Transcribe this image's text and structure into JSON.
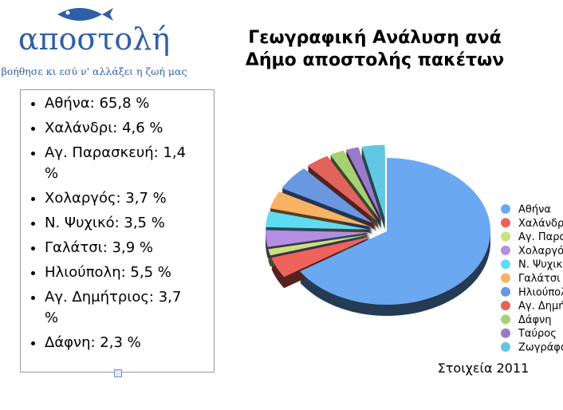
{
  "logo": {
    "name": "αποστολή",
    "slogan": "βοήθησε κι εσύ ν' αλλάξει η ζωή μας"
  },
  "text_box": {
    "items": [
      "Αθήνα: 65,8 %",
      "Χαλάνδρι: 4,6 %",
      "Αγ. Παρασκευή: 1,4 %",
      "Χολαργός: 3,7 %",
      "Ν. Ψυχικό: 3,5 %",
      "Γαλάτσι: 3,9 %",
      "Ηλιούπολη: 5,5 %",
      "Αγ. Δημήτριος: 3,7 %",
      "Δάφνη: 2,3 %"
    ]
  },
  "chart_data": {
    "type": "pie",
    "title": "Γεωγραφική Ανάλυση ανά Δήμο αποστολής πακέτων",
    "categories": [
      "Αθήνα",
      "Χαλάνδρι",
      "Αγ. Παρασκευή",
      "Χολαργός",
      "Ν. Ψυχικό",
      "Γαλάτσι",
      "Ηλιούπολη",
      "Αγ. Δημήτριος",
      "Δάφνη",
      "Ταύρος",
      "Ζωγράφου"
    ],
    "values": [
      65.8,
      4.6,
      1.4,
      3.7,
      3.5,
      3.9,
      5.5,
      3.7,
      2.3,
      2.0,
      3.6
    ],
    "colors": [
      "#6aa8f2",
      "#f0625c",
      "#c8e27c",
      "#b48ee0",
      "#60dcf2",
      "#f8b264",
      "#6a98e0",
      "#e2625e",
      "#a8d072",
      "#9c7aca",
      "#62c8e2"
    ],
    "caption": "Στοιχεία 2011",
    "legend": "right"
  }
}
